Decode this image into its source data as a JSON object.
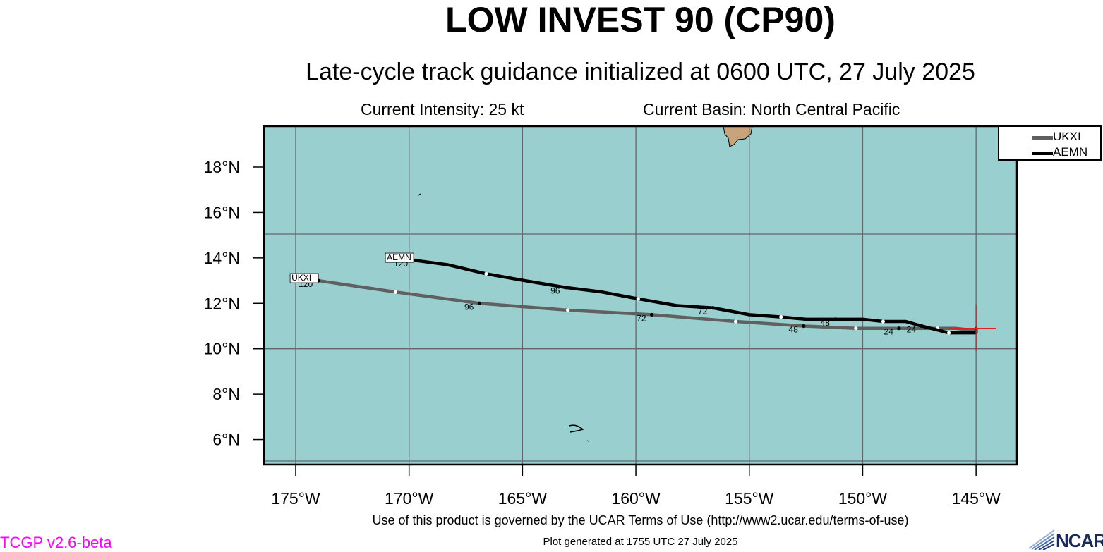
{
  "header": {
    "title": "LOW INVEST 90 (CP90)",
    "subtitle": "Late-cycle track guidance initialized at 0600 UTC, 27 July 2025",
    "intensity": "Current Intensity: 25 kt",
    "basin": "Current Basin: North Central Pacific"
  },
  "map": {
    "lon_range": [
      -176.4,
      -143.2
    ],
    "lat_range": [
      4.9,
      19.8
    ],
    "lon_ticks": [
      -175,
      -170,
      -165,
      -160,
      -155,
      -150,
      -145
    ],
    "lon_tick_labels": [
      "175°W",
      "170°W",
      "165°W",
      "160°W",
      "155°W",
      "150°W",
      "145°W"
    ],
    "lat_ticks": [
      6,
      8,
      10,
      12,
      14,
      16,
      18
    ],
    "lat_tick_labels": [
      "6°N",
      "8°N",
      "10°N",
      "12°N",
      "14°N",
      "16°N",
      "18°N"
    ],
    "ocean_color": "#99cfcf",
    "land_color": "#c8a47e",
    "current_position": {
      "lon": -145.0,
      "lat": 10.9
    },
    "current_marker_color": "#e02020"
  },
  "legend": {
    "items": [
      {
        "label": "UKXI",
        "color": "#606060"
      },
      {
        "label": "AEMN",
        "color": "#000000"
      }
    ]
  },
  "tracks": [
    {
      "name": "UKXI",
      "color": "#606060",
      "points": [
        {
          "lon": -145.0,
          "lat": 10.8
        },
        {
          "lon": -145.9,
          "lat": 10.9
        },
        {
          "lon": -146.7,
          "lat": 10.9
        },
        {
          "lon": -148.4,
          "lat": 10.9
        },
        {
          "lon": -150.3,
          "lat": 10.9
        },
        {
          "lon": -152.6,
          "lat": 11.0
        },
        {
          "lon": -155.6,
          "lat": 11.2
        },
        {
          "lon": -159.3,
          "lat": 11.5
        },
        {
          "lon": -163.0,
          "lat": 11.7
        },
        {
          "lon": -166.9,
          "lat": 12.0
        },
        {
          "lon": -170.6,
          "lat": 12.5
        },
        {
          "lon": -174.0,
          "lat": 13.0
        }
      ],
      "markers": [
        {
          "lon": -146.7,
          "lat": 10.9,
          "fill": "white"
        },
        {
          "lon": -148.4,
          "lat": 10.9,
          "fill": "black",
          "label": "24"
        },
        {
          "lon": -150.3,
          "lat": 10.9,
          "fill": "white"
        },
        {
          "lon": -152.6,
          "lat": 11.0,
          "fill": "black",
          "label": "48"
        },
        {
          "lon": -155.6,
          "lat": 11.2,
          "fill": "white"
        },
        {
          "lon": -159.3,
          "lat": 11.5,
          "fill": "black",
          "label": "72"
        },
        {
          "lon": -163.0,
          "lat": 11.7,
          "fill": "white"
        },
        {
          "lon": -166.9,
          "lat": 12.0,
          "fill": "black",
          "label": "96"
        },
        {
          "lon": -170.6,
          "lat": 12.5,
          "fill": "white"
        },
        {
          "lon": -174.0,
          "lat": 13.0,
          "fill": "black",
          "label": "120"
        }
      ]
    },
    {
      "name": "AEMN",
      "color": "#000000",
      "points": [
        {
          "lon": -145.0,
          "lat": 10.9
        },
        {
          "lon": -145.0,
          "lat": 10.7
        },
        {
          "lon": -146.2,
          "lat": 10.7
        },
        {
          "lon": -147.4,
          "lat": 11.0
        },
        {
          "lon": -148.1,
          "lat": 11.2
        },
        {
          "lon": -149.1,
          "lat": 11.2
        },
        {
          "lon": -150.0,
          "lat": 11.3
        },
        {
          "lon": -151.2,
          "lat": 11.3
        },
        {
          "lon": -152.5,
          "lat": 11.3
        },
        {
          "lon": -153.6,
          "lat": 11.4
        },
        {
          "lon": -155.0,
          "lat": 11.5
        },
        {
          "lon": -156.6,
          "lat": 11.8
        },
        {
          "lon": -158.2,
          "lat": 11.9
        },
        {
          "lon": -159.9,
          "lat": 12.2
        },
        {
          "lon": -161.5,
          "lat": 12.5
        },
        {
          "lon": -163.1,
          "lat": 12.7
        },
        {
          "lon": -164.9,
          "lat": 13.0
        },
        {
          "lon": -166.6,
          "lat": 13.3
        },
        {
          "lon": -168.3,
          "lat": 13.7
        },
        {
          "lon": -169.8,
          "lat": 13.9
        }
      ],
      "markers": [
        {
          "lon": -146.2,
          "lat": 10.7,
          "fill": "white"
        },
        {
          "lon": -147.4,
          "lat": 11.0,
          "fill": "black",
          "label": "24"
        },
        {
          "lon": -149.1,
          "lat": 11.2,
          "fill": "white"
        },
        {
          "lon": -151.2,
          "lat": 11.3,
          "fill": "black",
          "label": "48"
        },
        {
          "lon": -153.6,
          "lat": 11.4,
          "fill": "white"
        },
        {
          "lon": -156.6,
          "lat": 11.8,
          "fill": "black",
          "label": "72"
        },
        {
          "lon": -159.9,
          "lat": 12.2,
          "fill": "white"
        },
        {
          "lon": -163.1,
          "lat": 12.7,
          "fill": "black",
          "label": "96"
        },
        {
          "lon": -166.6,
          "lat": 13.3,
          "fill": "white"
        },
        {
          "lon": -169.8,
          "lat": 13.9,
          "fill": "black",
          "label": "120"
        }
      ]
    }
  ],
  "footer": {
    "terms": "Use of this product is governed by the UCAR Terms of Use (http://www2.ucar.edu/terms-of-use)",
    "generated": "Plot generated at 1755 UTC   27 July 2025",
    "version": "TCGP v2.6-beta",
    "logo_text": "NCAR"
  }
}
